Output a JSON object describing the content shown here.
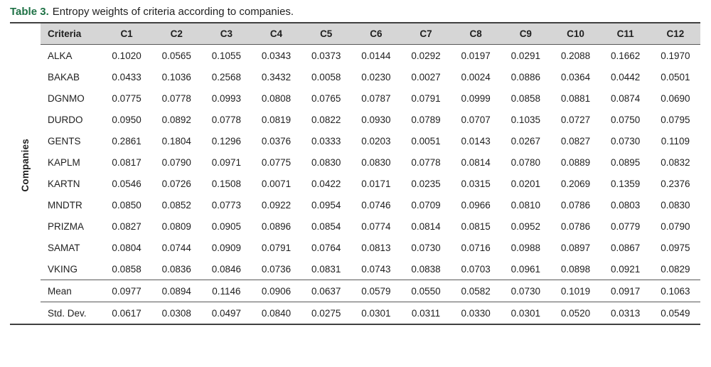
{
  "caption": {
    "label": "Table 3.",
    "text": "Entropy weights of criteria according to companies."
  },
  "side_label": "Companies",
  "colors": {
    "caption_green": "#1E7145",
    "header_bg": "#D6D6D6",
    "thick_border": "#404040",
    "thin_border": "#595959",
    "text": "#1F1F1F"
  },
  "chart_data": {
    "type": "table",
    "title": "Entropy weights of criteria according to companies",
    "row_group_label": "Companies",
    "header": [
      "Criteria",
      "C1",
      "C2",
      "C3",
      "C4",
      "C5",
      "C6",
      "C7",
      "C8",
      "C9",
      "C10",
      "C11",
      "C12"
    ],
    "body_rows": [
      {
        "label": "ALKA",
        "values": [
          "0.1020",
          "0.0565",
          "0.1055",
          "0.0343",
          "0.0373",
          "0.0144",
          "0.0292",
          "0.0197",
          "0.0291",
          "0.2088",
          "0.1662",
          "0.1970"
        ]
      },
      {
        "label": "BAKAB",
        "values": [
          "0.0433",
          "0.1036",
          "0.2568",
          "0.3432",
          "0.0058",
          "0.0230",
          "0.0027",
          "0.0024",
          "0.0886",
          "0.0364",
          "0.0442",
          "0.0501"
        ]
      },
      {
        "label": "DGNMO",
        "values": [
          "0.0775",
          "0.0778",
          "0.0993",
          "0.0808",
          "0.0765",
          "0.0787",
          "0.0791",
          "0.0999",
          "0.0858",
          "0.0881",
          "0.0874",
          "0.0690"
        ]
      },
      {
        "label": "DURDO",
        "values": [
          "0.0950",
          "0.0892",
          "0.0778",
          "0.0819",
          "0.0822",
          "0.0930",
          "0.0789",
          "0.0707",
          "0.1035",
          "0.0727",
          "0.0750",
          "0.0795"
        ]
      },
      {
        "label": "GENTS",
        "values": [
          "0.2861",
          "0.1804",
          "0.1296",
          "0.0376",
          "0.0333",
          "0.0203",
          "0.0051",
          "0.0143",
          "0.0267",
          "0.0827",
          "0.0730",
          "0.1109"
        ]
      },
      {
        "label": "KAPLM",
        "values": [
          "0.0817",
          "0.0790",
          "0.0971",
          "0.0775",
          "0.0830",
          "0.0830",
          "0.0778",
          "0.0814",
          "0.0780",
          "0.0889",
          "0.0895",
          "0.0832"
        ]
      },
      {
        "label": "KARTN",
        "values": [
          "0.0546",
          "0.0726",
          "0.1508",
          "0.0071",
          "0.0422",
          "0.0171",
          "0.0235",
          "0.0315",
          "0.0201",
          "0.2069",
          "0.1359",
          "0.2376"
        ]
      },
      {
        "label": "MNDTR",
        "values": [
          "0.0850",
          "0.0852",
          "0.0773",
          "0.0922",
          "0.0954",
          "0.0746",
          "0.0709",
          "0.0966",
          "0.0810",
          "0.0786",
          "0.0803",
          "0.0830"
        ]
      },
      {
        "label": "PRIZMA",
        "values": [
          "0.0827",
          "0.0809",
          "0.0905",
          "0.0896",
          "0.0854",
          "0.0774",
          "0.0814",
          "0.0815",
          "0.0952",
          "0.0786",
          "0.0779",
          "0.0790"
        ]
      },
      {
        "label": "SAMAT",
        "values": [
          "0.0804",
          "0.0744",
          "0.0909",
          "0.0791",
          "0.0764",
          "0.0813",
          "0.0730",
          "0.0716",
          "0.0988",
          "0.0897",
          "0.0867",
          "0.0975"
        ]
      },
      {
        "label": "VKING",
        "values": [
          "0.0858",
          "0.0836",
          "0.0846",
          "0.0736",
          "0.0831",
          "0.0743",
          "0.0838",
          "0.0703",
          "0.0961",
          "0.0898",
          "0.0921",
          "0.0829"
        ]
      }
    ],
    "footer_rows": [
      {
        "label": "Mean",
        "values": [
          "0.0977",
          "0.0894",
          "0.1146",
          "0.0906",
          "0.0637",
          "0.0579",
          "0.0550",
          "0.0582",
          "0.0730",
          "0.1019",
          "0.0917",
          "0.1063"
        ]
      },
      {
        "label": "Std. Dev.",
        "values": [
          "0.0617",
          "0.0308",
          "0.0497",
          "0.0840",
          "0.0275",
          "0.0301",
          "0.0311",
          "0.0330",
          "0.0301",
          "0.0520",
          "0.0313",
          "0.0549"
        ]
      }
    ]
  }
}
